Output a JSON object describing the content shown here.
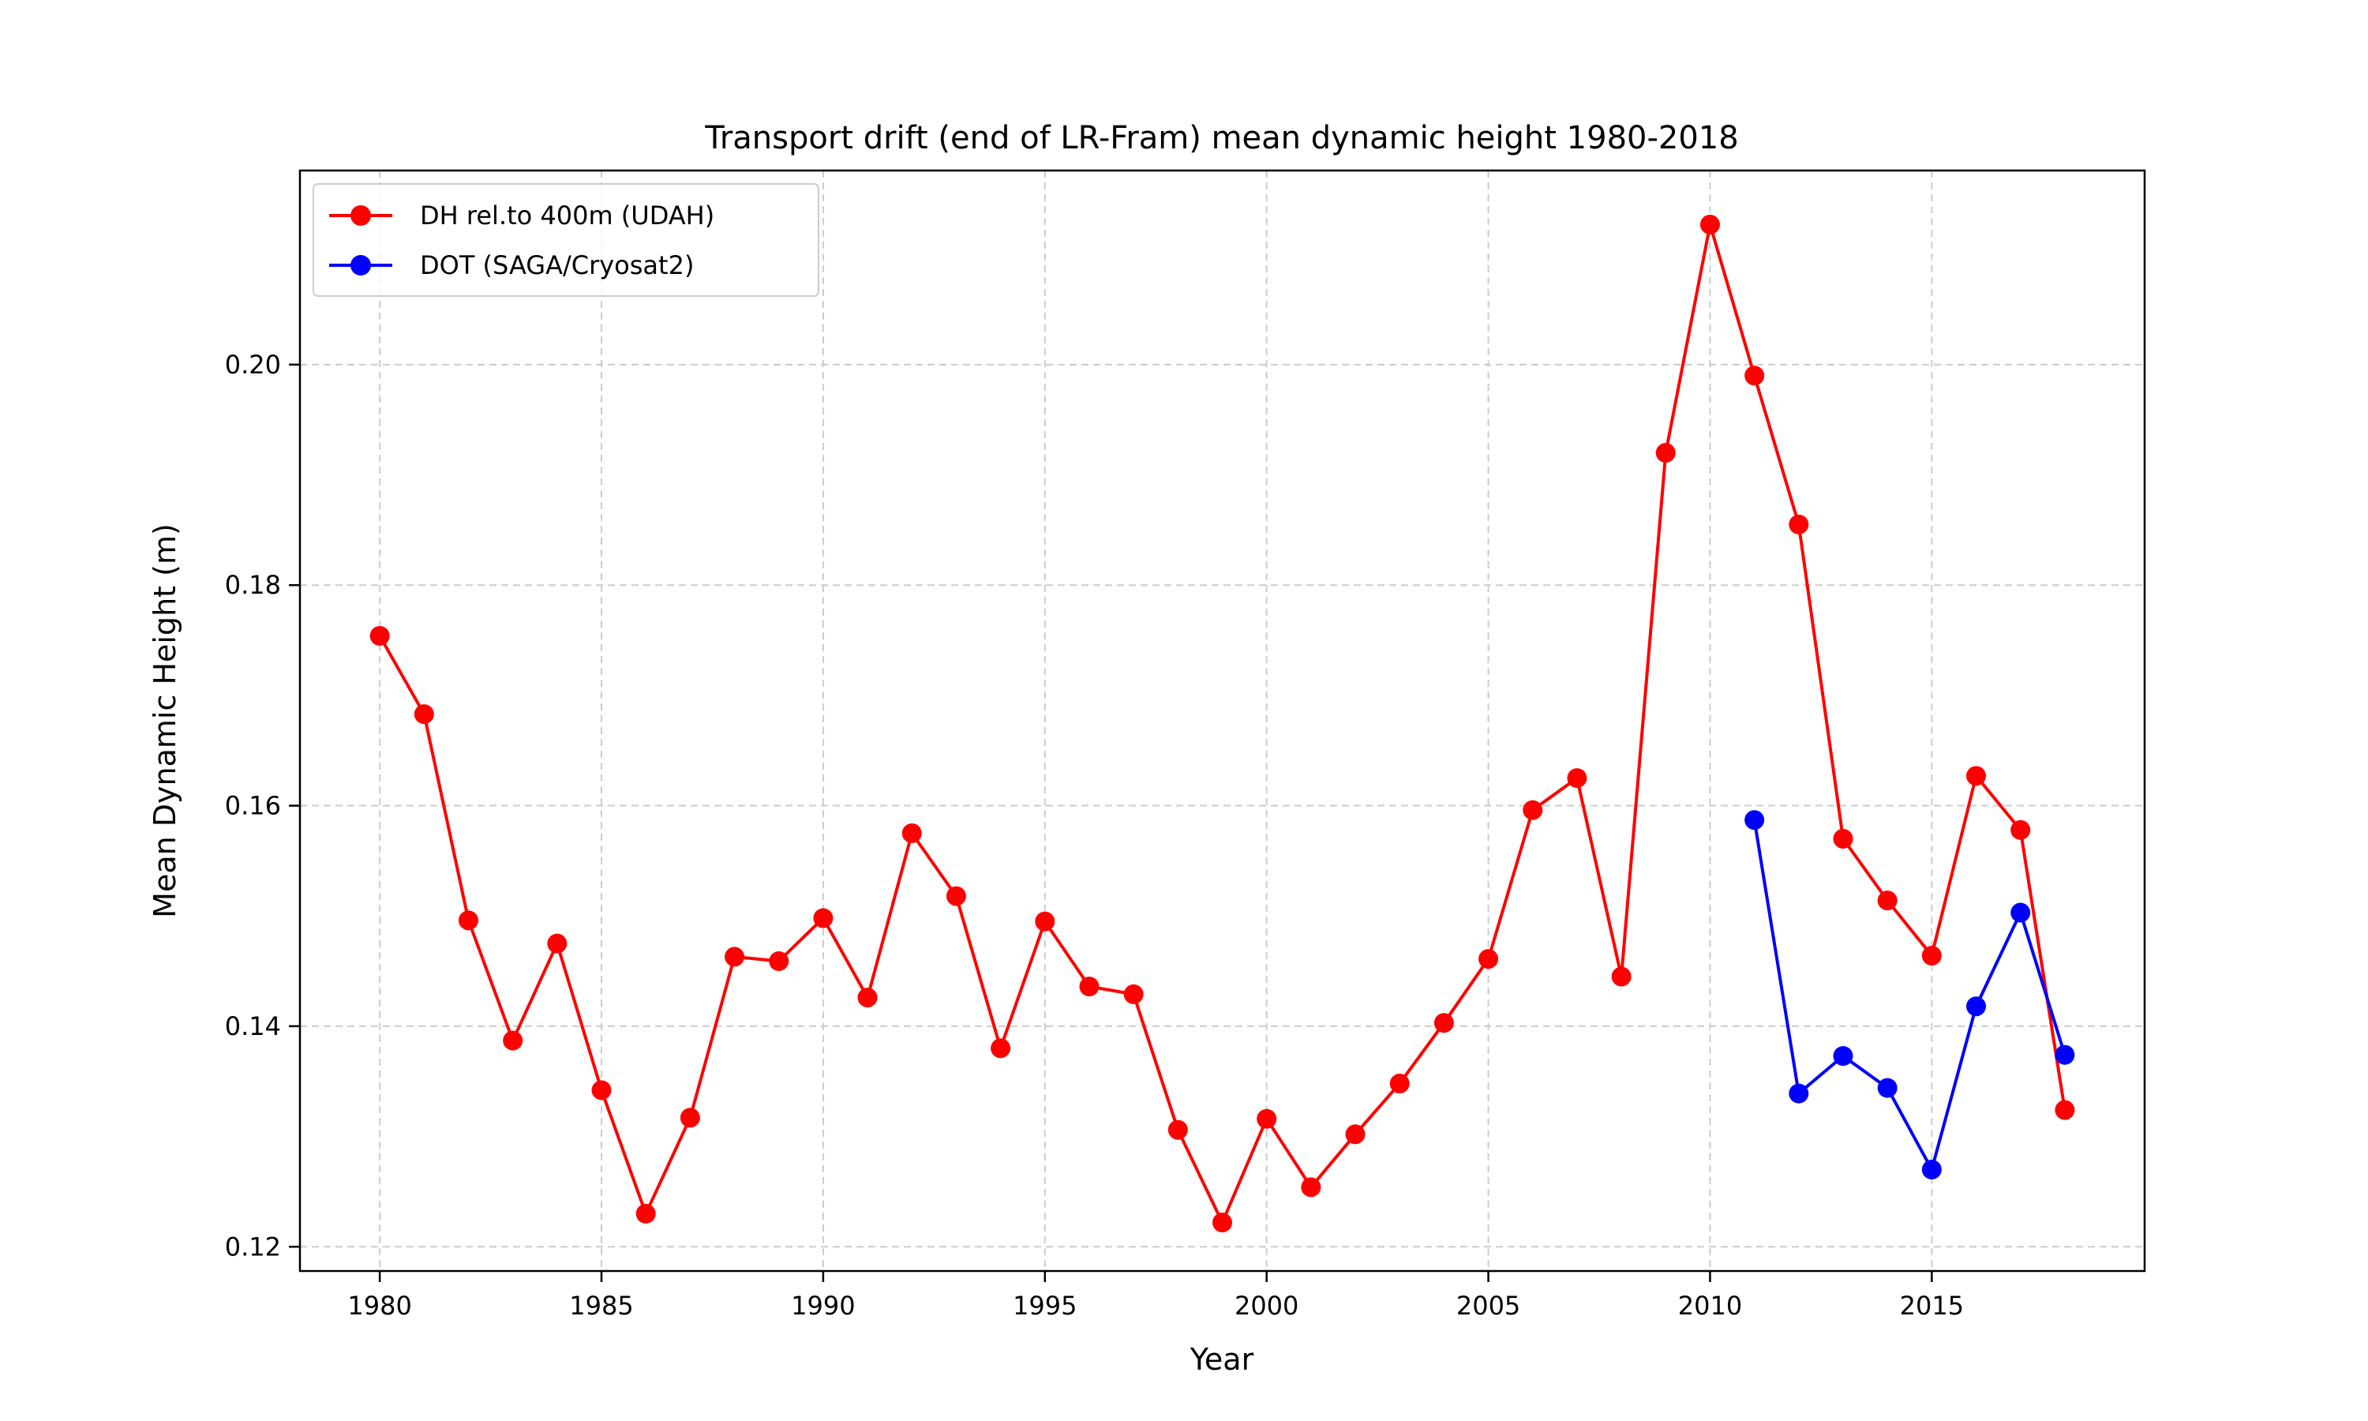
{
  "chart_data": {
    "type": "line",
    "title": "Transport drift (end of LR-Fram) mean dynamic height 1980-2018",
    "xlabel": "Year",
    "ylabel": "Mean Dynamic Height (m)",
    "xlim": [
      1978.2,
      2019.8
    ],
    "ylim": [
      0.1178,
      0.2176
    ],
    "x_ticks": [
      1980,
      1985,
      1990,
      1995,
      2000,
      2005,
      2010,
      2015
    ],
    "y_ticks": [
      0.12,
      0.14,
      0.16,
      0.18,
      0.2
    ],
    "y_tick_labels": [
      "0.12",
      "0.14",
      "0.16",
      "0.18",
      "0.20"
    ],
    "grid": true,
    "legend_position": "upper-left",
    "series": [
      {
        "name": "DH rel.to 400m (UDAH)",
        "color": "#ff0000",
        "marker": "circle",
        "x": [
          1980,
          1981,
          1982,
          1983,
          1984,
          1985,
          1986,
          1987,
          1988,
          1989,
          1990,
          1991,
          1992,
          1993,
          1994,
          1995,
          1996,
          1997,
          1998,
          1999,
          2000,
          2001,
          2002,
          2003,
          2004,
          2005,
          2006,
          2007,
          2008,
          2009,
          2010,
          2011,
          2012,
          2013,
          2014,
          2015,
          2016,
          2017,
          2018
        ],
        "y": [
          0.1754,
          0.1683,
          0.1496,
          0.1387,
          0.1475,
          0.1342,
          0.123,
          0.1317,
          0.1463,
          0.1459,
          0.1498,
          0.1426,
          0.1575,
          0.1518,
          0.138,
          0.1495,
          0.1436,
          0.1429,
          0.1306,
          0.1222,
          0.1316,
          0.1254,
          0.1302,
          0.1348,
          0.1403,
          0.1461,
          0.1596,
          0.1625,
          0.1445,
          0.192,
          0.2127,
          0.199,
          0.1855,
          0.157,
          0.1514,
          0.1464,
          0.1627,
          0.1578,
          0.1324
        ]
      },
      {
        "name": "DOT (SAGA/Cryosat2)",
        "color": "#0000ff",
        "marker": "circle",
        "x": [
          2011,
          2012,
          2013,
          2014,
          2015,
          2016,
          2017,
          2018
        ],
        "y": [
          0.1587,
          0.1339,
          0.1373,
          0.1344,
          0.127,
          0.1418,
          0.1503,
          0.1374
        ]
      }
    ]
  }
}
